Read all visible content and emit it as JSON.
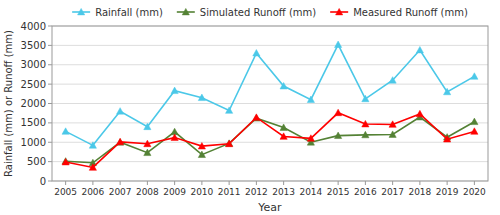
{
  "chart_data": {
    "type": "line",
    "x_label": "Year",
    "y_label": "Rainfall (mm) or Runoff (mm)",
    "x": [
      2005,
      2006,
      2007,
      2008,
      2009,
      2010,
      2011,
      2012,
      2013,
      2014,
      2015,
      2016,
      2017,
      2018,
      2019,
      2020
    ],
    "series": [
      {
        "name": "Rainfall (mm)",
        "color": "#4BC8E8",
        "marker": "triangle",
        "values": [
          1280,
          920,
          1800,
          1400,
          2330,
          2150,
          1820,
          3300,
          2450,
          2100,
          3520,
          2120,
          2600,
          3380,
          2300,
          2700
        ]
      },
      {
        "name": "Simulated Runoff (mm)",
        "color": "#548235",
        "marker": "triangle",
        "values": [
          510,
          470,
          1000,
          730,
          1270,
          680,
          970,
          1620,
          1380,
          1000,
          1170,
          1190,
          1200,
          1650,
          1130,
          1530
        ]
      },
      {
        "name": "Measured Runoff (mm)",
        "color": "#FF0000",
        "marker": "triangle",
        "values": [
          490,
          350,
          1010,
          960,
          1120,
          900,
          960,
          1640,
          1150,
          1100,
          1760,
          1470,
          1460,
          1730,
          1080,
          1280
        ]
      }
    ],
    "xlim": [
      2004.5,
      2020.5
    ],
    "xticks": [
      2005,
      2006,
      2007,
      2008,
      2009,
      2010,
      2011,
      2012,
      2013,
      2014,
      2015,
      2016,
      2017,
      2018,
      2019,
      2020
    ],
    "ylim": [
      0,
      4000
    ],
    "yticks": [
      0,
      500,
      1000,
      1500,
      2000,
      2500,
      3000,
      3500,
      4000
    ],
    "grid": true,
    "legend": "top"
  }
}
